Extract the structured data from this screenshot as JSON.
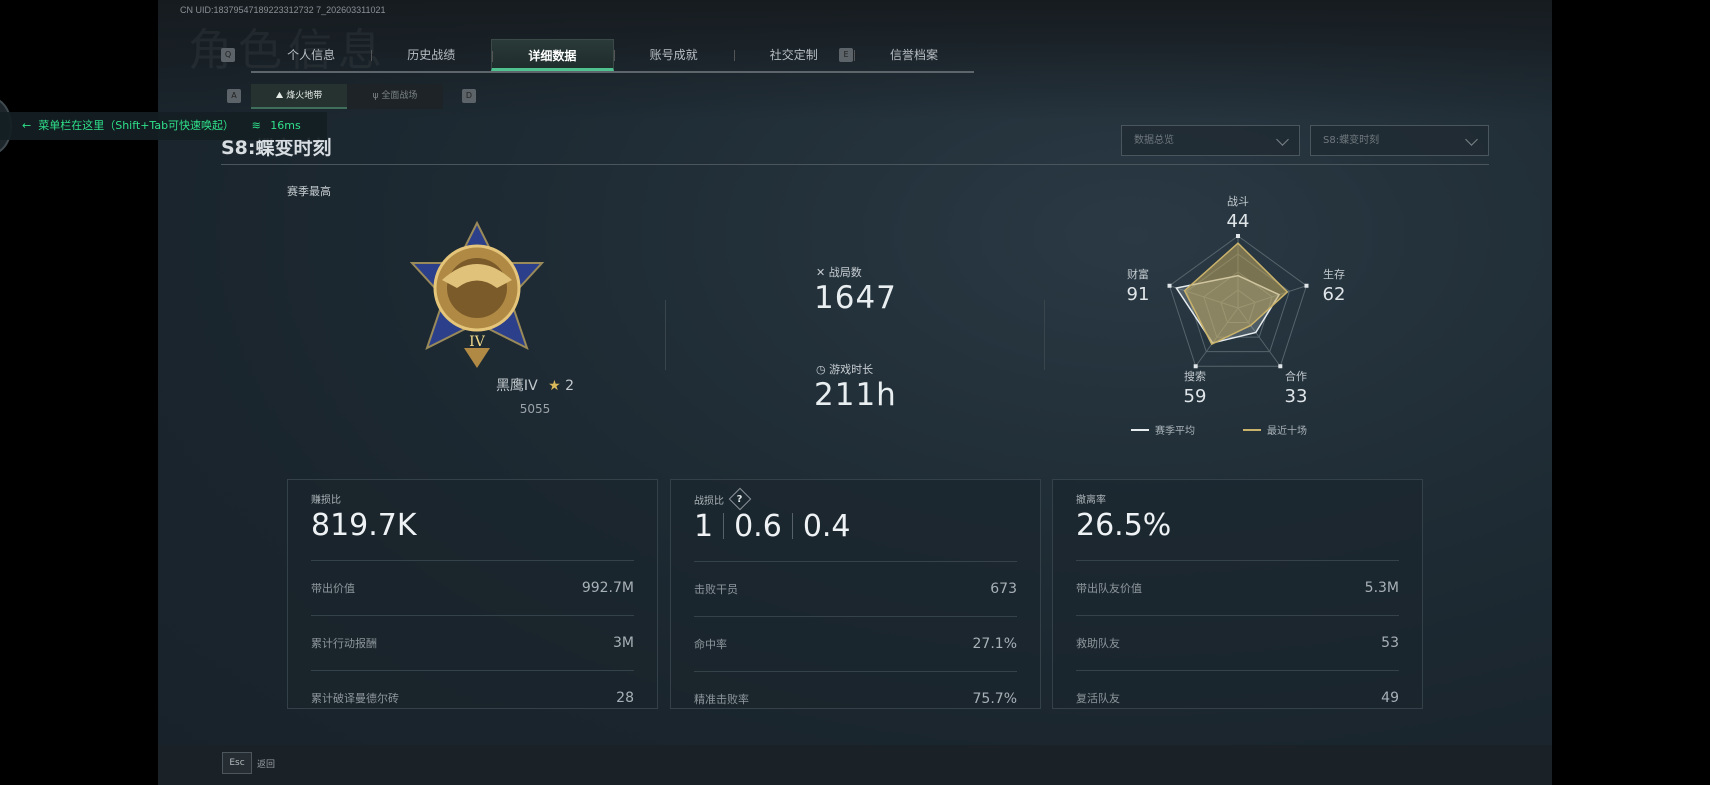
{
  "header": {
    "uid": "CN UID:18379547189223312732 7_202603311021",
    "ghost_title": "角色信息",
    "key_left": "Q",
    "key_right": "E"
  },
  "tabs": [
    {
      "label": "个人信息"
    },
    {
      "label": "历史战绩"
    },
    {
      "label": "详细数据",
      "active": true
    },
    {
      "label": "账号成就"
    },
    {
      "label": "社交定制"
    },
    {
      "label": "信誉档案"
    }
  ],
  "subtabs": {
    "key_left": "A",
    "key_right": "D",
    "items": [
      {
        "label": "烽火地带",
        "icon": "mountain-icon",
        "active": true
      },
      {
        "label": "全面战场",
        "icon": "trident-icon"
      }
    ]
  },
  "overlay": {
    "menu_hint": "菜单栏在这里（Shift+Tab可快速唤起）",
    "ping": "16ms",
    "accent": "#2fe08a"
  },
  "season": {
    "title": "S8:蝶变时刻"
  },
  "filters": [
    {
      "value": "数据总览"
    },
    {
      "value": "S8:蝶变时刻"
    }
  ],
  "best": {
    "label": "赛季最高",
    "rank": "黑鹰IV",
    "stars": "2",
    "score": "5055",
    "medal_numeral": "IV"
  },
  "summary": {
    "matches_label": "战局数",
    "matches": "1647",
    "time_label": "游戏时长",
    "time": "211h"
  },
  "chart_data": {
    "type": "radar",
    "axes": [
      "战斗",
      "生存",
      "合作",
      "搜索",
      "财富"
    ],
    "values": [
      44,
      62,
      33,
      59,
      91
    ],
    "legend": [
      {
        "name": "赛季平均",
        "color": "#e6ebee"
      },
      {
        "name": "最近十场",
        "color": "#c9b26a"
      }
    ],
    "legend_placement": "bottom"
  },
  "cards": [
    {
      "label": "赚损比",
      "value": "819.7K",
      "rows": [
        {
          "k": "带出价值",
          "v": "992.7M"
        },
        {
          "k": "累计行动报酬",
          "v": "3M"
        },
        {
          "k": "累计破译曼德尔砖",
          "v": "28"
        }
      ]
    },
    {
      "label": "战损比",
      "help": "?",
      "values": [
        "1",
        "0.6",
        "0.4"
      ],
      "rows": [
        {
          "k": "击败干员",
          "v": "673"
        },
        {
          "k": "命中率",
          "v": "27.1%"
        },
        {
          "k": "精准击败率",
          "v": "75.7%"
        }
      ]
    },
    {
      "label": "撤离率",
      "value": "26.5%",
      "rows": [
        {
          "k": "带出队友价值",
          "v": "5.3M"
        },
        {
          "k": "救助队友",
          "v": "53"
        },
        {
          "k": "复活队友",
          "v": "49"
        }
      ]
    }
  ],
  "footer": {
    "esc": "Esc",
    "back": "返回"
  }
}
